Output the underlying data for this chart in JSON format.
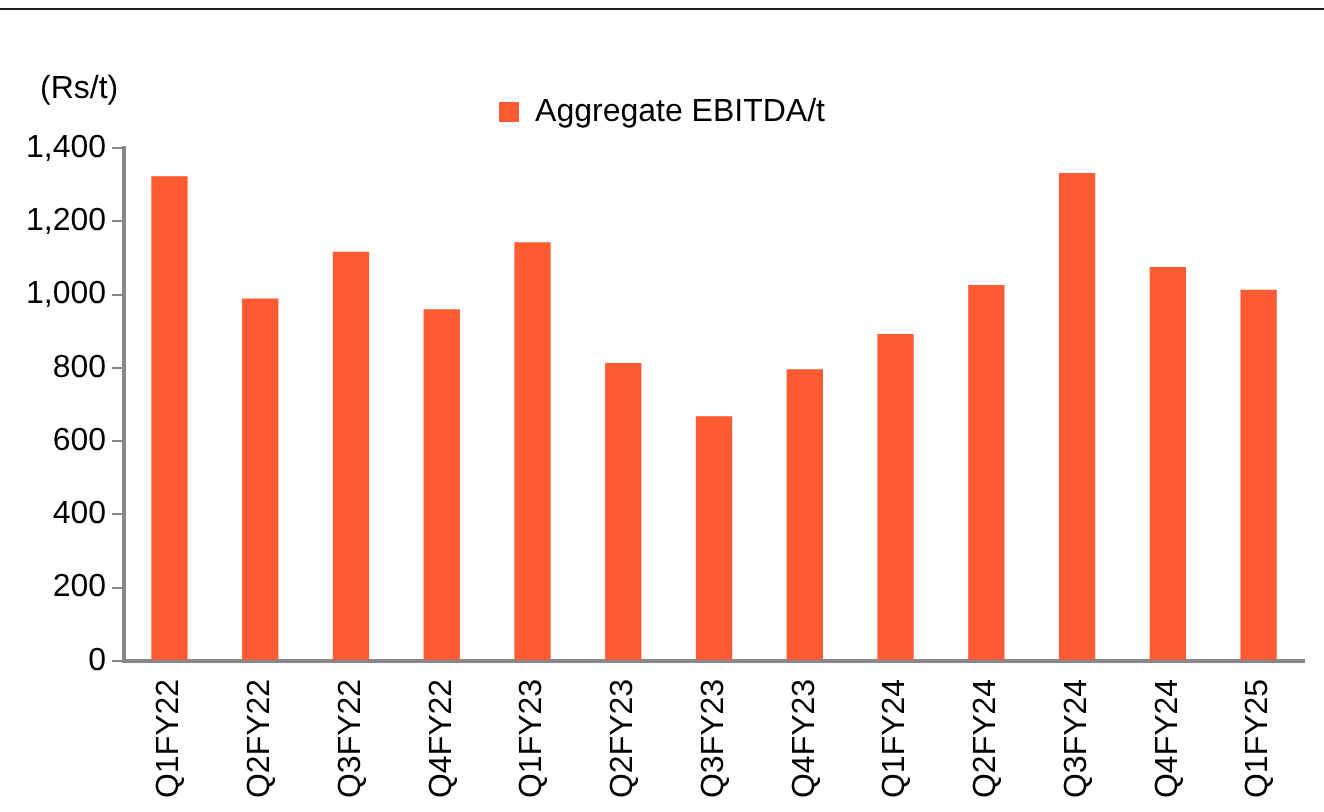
{
  "chart_data": {
    "type": "bar",
    "ylabel": "(Rs/t)",
    "categories": [
      "Q1FY22",
      "Q2FY22",
      "Q3FY22",
      "Q4FY22",
      "Q1FY23",
      "Q2FY23",
      "Q3FY23",
      "Q4FY23",
      "Q1FY24",
      "Q2FY24",
      "Q3FY24",
      "Q4FY24",
      "Q1FY25"
    ],
    "series": [
      {
        "name": "Aggregate EBITDA/t",
        "color": "#ff5b33",
        "values": [
          1323,
          989,
          1117,
          960,
          1143,
          813,
          668,
          796,
          892,
          1026,
          1332,
          1075,
          1013
        ]
      }
    ],
    "ylim": [
      0,
      1400
    ],
    "yticks": [
      0,
      200,
      400,
      600,
      800,
      {
        "value": 1000,
        "label": "1,000"
      },
      {
        "value": 1200,
        "label": "1,200"
      },
      {
        "value": 1400,
        "label": "1,400"
      }
    ],
    "grid": false,
    "legend": "top"
  }
}
